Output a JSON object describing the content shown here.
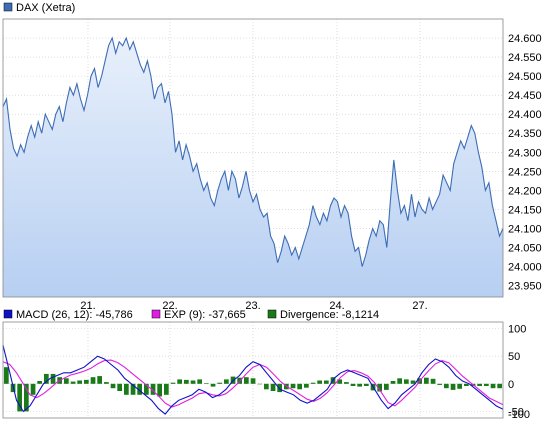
{
  "colors": {
    "price_line": "#3d6db5",
    "area_top": "#e8f0fb",
    "area_bottom": "#b7cff2",
    "grid": "#c8c8c8",
    "macd": "#1010c8",
    "exp": "#e020e0",
    "divergence": "#1a7a1a"
  },
  "chart_data": [
    {
      "type": "area",
      "legend": {
        "label": "DAX (Xetra)",
        "placement": "top-left"
      },
      "x_tick_labels": [
        "21.",
        "22.",
        "23.",
        "24.",
        "27."
      ],
      "ylim": [
        23920,
        24650
      ],
      "yticks": [
        23950,
        24000,
        24050,
        24100,
        24150,
        24200,
        24250,
        24300,
        24350,
        24400,
        24450,
        24500,
        24550,
        24600
      ],
      "ytick_labels": [
        "23.950",
        "24.000",
        "24.050",
        "24.100",
        "24.150",
        "24.200",
        "24.250",
        "24.300",
        "24.350",
        "24.400",
        "24.450",
        "24.500",
        "24.550",
        "24.600"
      ],
      "grid": true,
      "series": [
        {
          "values": [
            24420,
            24440,
            24360,
            24310,
            24290,
            24320,
            24300,
            24340,
            24370,
            24340,
            24380,
            24350,
            24400,
            24380,
            24360,
            24400,
            24420,
            24380,
            24430,
            24470,
            24450,
            24480,
            24440,
            24410,
            24450,
            24500,
            24520,
            24470,
            24500,
            24540,
            24580,
            24600,
            24560,
            24590,
            24580,
            24600,
            24570,
            24590,
            24560,
            24530,
            24510,
            24540,
            24500,
            24440,
            24470,
            24480,
            24430,
            24460,
            24400,
            24300,
            24330,
            24280,
            24320,
            24290,
            24250,
            24270,
            24230,
            24200,
            24220,
            24180,
            24160,
            24200,
            24230,
            24250,
            24200,
            24250,
            24230,
            24180,
            24210,
            24250,
            24200,
            24170,
            24190,
            24150,
            24130,
            24140,
            24080,
            24060,
            24010,
            24040,
            24080,
            24060,
            24030,
            24050,
            24020,
            24050,
            24080,
            24110,
            24160,
            24130,
            24110,
            24140,
            24120,
            24160,
            24180,
            24170,
            24130,
            24160,
            24140,
            24080,
            24040,
            24050,
            24000,
            24030,
            24070,
            24100,
            24080,
            24120,
            24110,
            24050,
            24170,
            24280,
            24200,
            24140,
            24160,
            24120,
            24190,
            24130,
            24170,
            24150,
            24140,
            24180,
            24150,
            24170,
            24190,
            24240,
            24220,
            24200,
            24270,
            24300,
            24330,
            24310,
            24340,
            24370,
            24350,
            24300,
            24260,
            24200,
            24220,
            24160,
            24120,
            24080,
            24100
          ]
        }
      ]
    },
    {
      "type": "line",
      "ylim": [
        -62,
        112
      ],
      "yticks": [
        100,
        50,
        0,
        -50,
        -100
      ],
      "ytick_labels": [
        "100",
        "50",
        "0",
        "-50",
        "-100"
      ],
      "grid": true,
      "series": [
        {
          "name": "MACD (26, 12): -45,786",
          "type": "line",
          "values": [
            70,
            20,
            -30,
            -50,
            -40,
            -20,
            0,
            10,
            15,
            20,
            20,
            25,
            30,
            40,
            50,
            45,
            35,
            25,
            10,
            0,
            -10,
            -20,
            -30,
            -45,
            -55,
            -40,
            -30,
            -25,
            -20,
            -10,
            -15,
            -25,
            -20,
            -10,
            5,
            15,
            30,
            40,
            35,
            20,
            5,
            -10,
            -15,
            -20,
            -30,
            -35,
            -30,
            -20,
            -10,
            10,
            20,
            25,
            20,
            15,
            10,
            -10,
            -30,
            -45,
            -35,
            -20,
            -10,
            0,
            20,
            35,
            45,
            40,
            30,
            15,
            5,
            0,
            -10,
            -20,
            -30,
            -40,
            -46
          ]
        },
        {
          "name": "EXP (9): -37,665",
          "type": "line",
          "values": [
            40,
            35,
            20,
            0,
            -20,
            -25,
            -18,
            -8,
            3,
            10,
            16,
            19,
            23,
            28,
            36,
            42,
            43,
            38,
            30,
            20,
            10,
            0,
            -10,
            -22,
            -35,
            -42,
            -38,
            -32,
            -26,
            -18,
            -16,
            -20,
            -22,
            -18,
            -8,
            4,
            18,
            30,
            35,
            30,
            18,
            5,
            -5,
            -12,
            -20,
            -28,
            -32,
            -26,
            -16,
            -2,
            12,
            22,
            24,
            20,
            14,
            2,
            -16,
            -34,
            -40,
            -30,
            -18,
            -6,
            10,
            24,
            36,
            42,
            38,
            26,
            14,
            4,
            -6,
            -16,
            -26,
            -32,
            -38
          ]
        },
        {
          "name": "Divergence: -8,1214",
          "type": "bar",
          "values": [
            30,
            -15,
            -50,
            -50,
            -20,
            5,
            18,
            18,
            12,
            10,
            4,
            6,
            7,
            12,
            14,
            3,
            -8,
            -13,
            -20,
            -20,
            -20,
            -20,
            -20,
            -23,
            -20,
            2,
            8,
            7,
            6,
            8,
            1,
            -5,
            2,
            8,
            13,
            11,
            12,
            10,
            0,
            -10,
            -13,
            -15,
            -10,
            -8,
            -10,
            -7,
            2,
            6,
            6,
            12,
            8,
            3,
            -4,
            -5,
            -4,
            -12,
            -14,
            -11,
            5,
            10,
            8,
            6,
            10,
            11,
            9,
            -2,
            -8,
            -11,
            -9,
            -4,
            -4,
            -4,
            -4,
            -8,
            -8
          ]
        }
      ]
    }
  ]
}
